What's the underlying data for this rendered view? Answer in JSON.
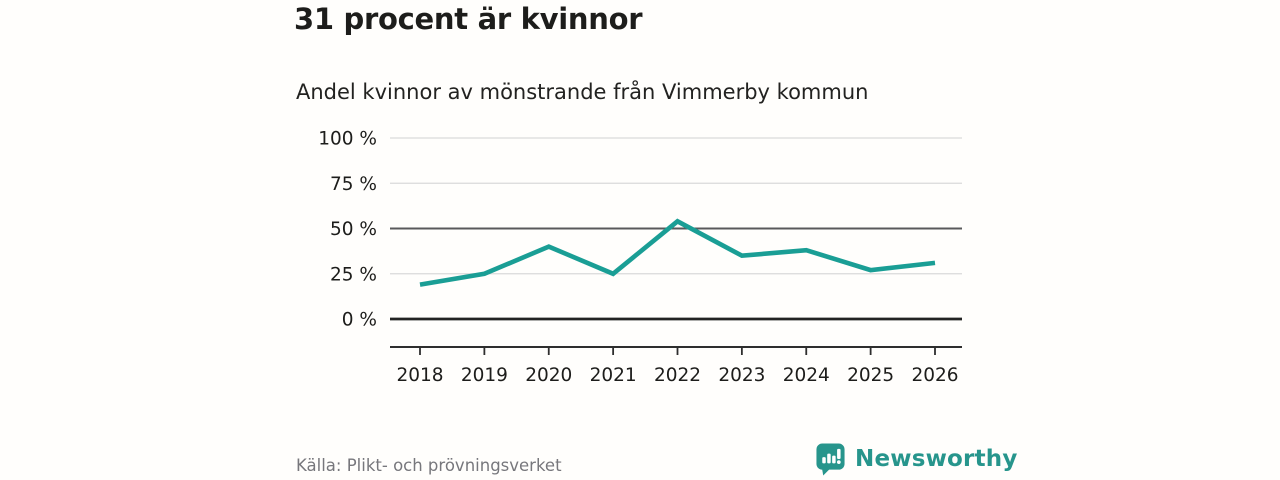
{
  "chart_data": {
    "type": "line",
    "title": "31 procent är kvinnor",
    "subtitle": "Andel kvinnor av mönstrande från Vimmerby kommun",
    "categories": [
      "2018",
      "2019",
      "2020",
      "2021",
      "2022",
      "2023",
      "2024",
      "2025",
      "2026"
    ],
    "values": [
      19,
      25,
      40,
      25,
      54,
      35,
      38,
      27,
      31
    ],
    "series_name": "Andel kvinnor av mönstrande",
    "xlabel": "",
    "ylabel": "",
    "ylim": [
      0,
      100
    ],
    "yticks": [
      0,
      25,
      50,
      75,
      100
    ],
    "ytick_labels": [
      "0 %",
      "25 %",
      "50 %",
      "75 %",
      "100 %"
    ],
    "grid": true,
    "legend": "none",
    "line_color": "#1a9e95",
    "gridline_color_light": "#dadada",
    "gridline_color_fifty": "#59595b",
    "gridline_color_zero": "#232323"
  },
  "footer": {
    "source": "Källa: Plikt- och prövningsverket",
    "brand": "Newsworthy",
    "brand_color": "#27958c"
  }
}
